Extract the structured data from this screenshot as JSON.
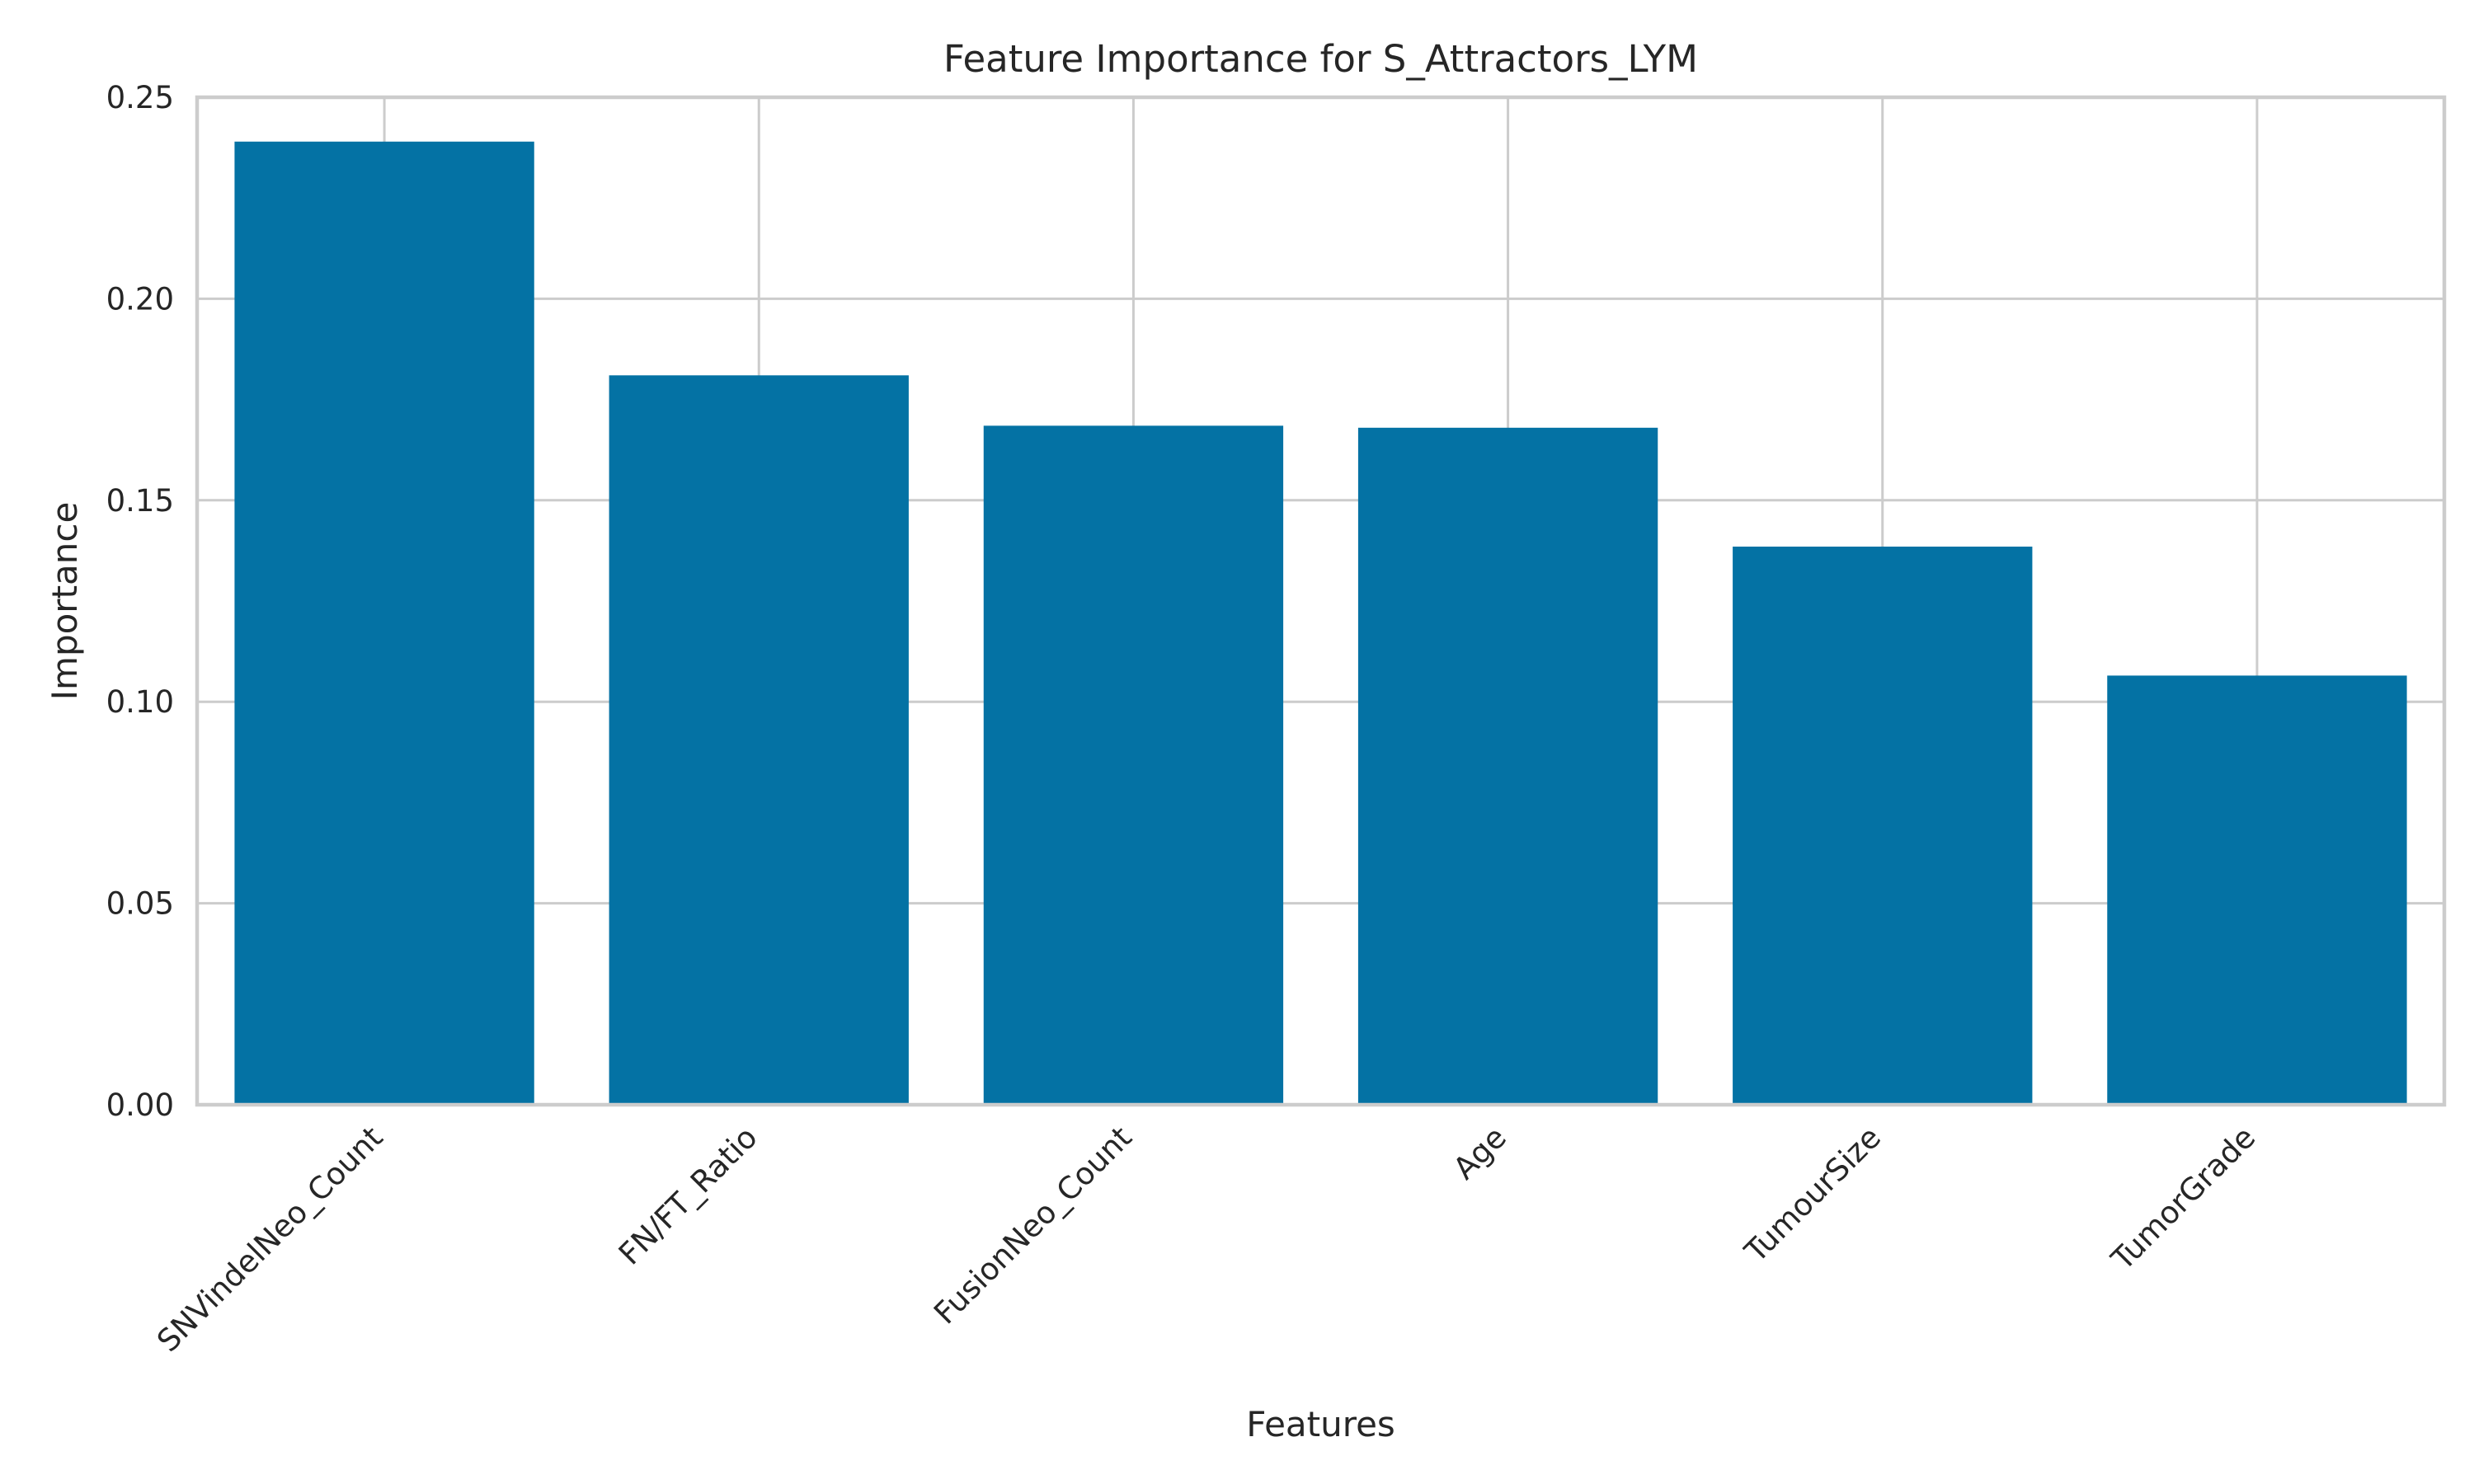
{
  "chart_data": {
    "type": "bar",
    "title": "Feature Importance for S_Attractors_LYM",
    "xlabel": "Features",
    "ylabel": "Importance",
    "categories": [
      "SNVindelNeo_Count",
      "FN/FT_Ratio",
      "FusionNeo_Count",
      "Age",
      "TumourSize",
      "TumorGrade"
    ],
    "values": [
      0.239,
      0.181,
      0.1685,
      0.168,
      0.1385,
      0.1065
    ],
    "ylim": [
      0,
      0.25
    ],
    "yticks": [
      0.0,
      0.05,
      0.1,
      0.15,
      0.2,
      0.25
    ],
    "ytick_labels": [
      "0.00",
      "0.05",
      "0.10",
      "0.15",
      "0.20",
      "0.25"
    ],
    "grid": true,
    "bar_color": "#0472a4",
    "grid_color": "#cccccc"
  }
}
